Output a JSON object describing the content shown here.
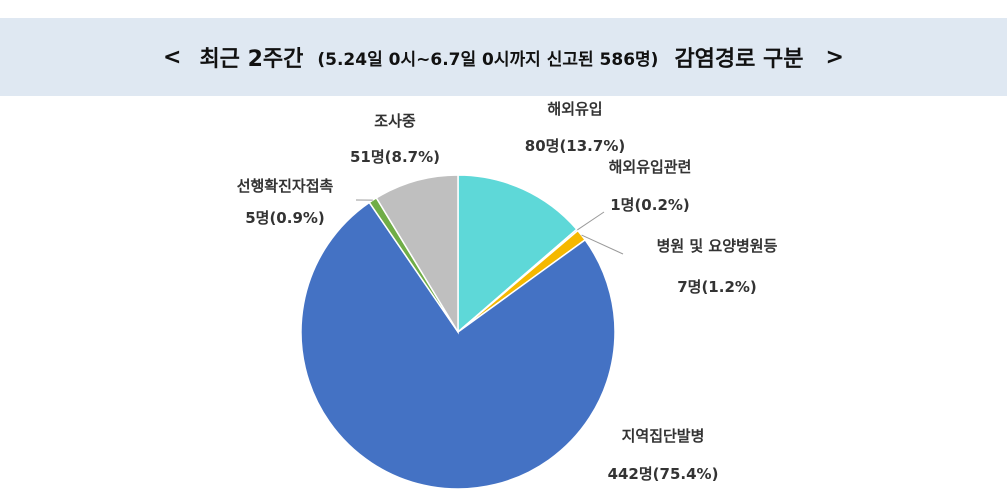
{
  "header": {
    "left_bracket": "<",
    "title_main": "최근 2주간",
    "title_sub": "(5.24일 0시~6.7일 0시까지 신고된 586명)",
    "title_tail": "감염경로 구분",
    "right_bracket": ">"
  },
  "chart_data": {
    "type": "pie",
    "title": "최근 2주간 (5.24일 0시~6.7일 0시까지 신고된 586명) 감염경로 구분",
    "total": 586,
    "slices": [
      {
        "label": "해외유입",
        "count": 80,
        "count_text": "80명",
        "pct_text": "(13.7%)",
        "percent": 13.7,
        "color": "#5ed8d8"
      },
      {
        "label": "해외유입관련",
        "count": 1,
        "count_text": "1명",
        "pct_text": "(0.2%)",
        "percent": 0.2,
        "color": "#4472c4"
      },
      {
        "label": "병원 및 요양병원등",
        "count": 7,
        "count_text": "7명",
        "pct_text": "(1.2%)",
        "percent": 1.2,
        "color": "#f5b800"
      },
      {
        "label": "지역집단발병",
        "count": 442,
        "count_text": "442명",
        "pct_text": "(75.4%)",
        "percent": 75.4,
        "color": "#4472c4"
      },
      {
        "label": "선행확진자접촉",
        "count": 5,
        "count_text": "5명",
        "pct_text": "(0.9%)",
        "percent": 0.9,
        "color": "#70ad47"
      },
      {
        "label": "조사중",
        "count": 51,
        "count_text": "51명",
        "pct_text": "(8.7%)",
        "percent": 8.7,
        "color": "#bfbfbf"
      }
    ]
  }
}
